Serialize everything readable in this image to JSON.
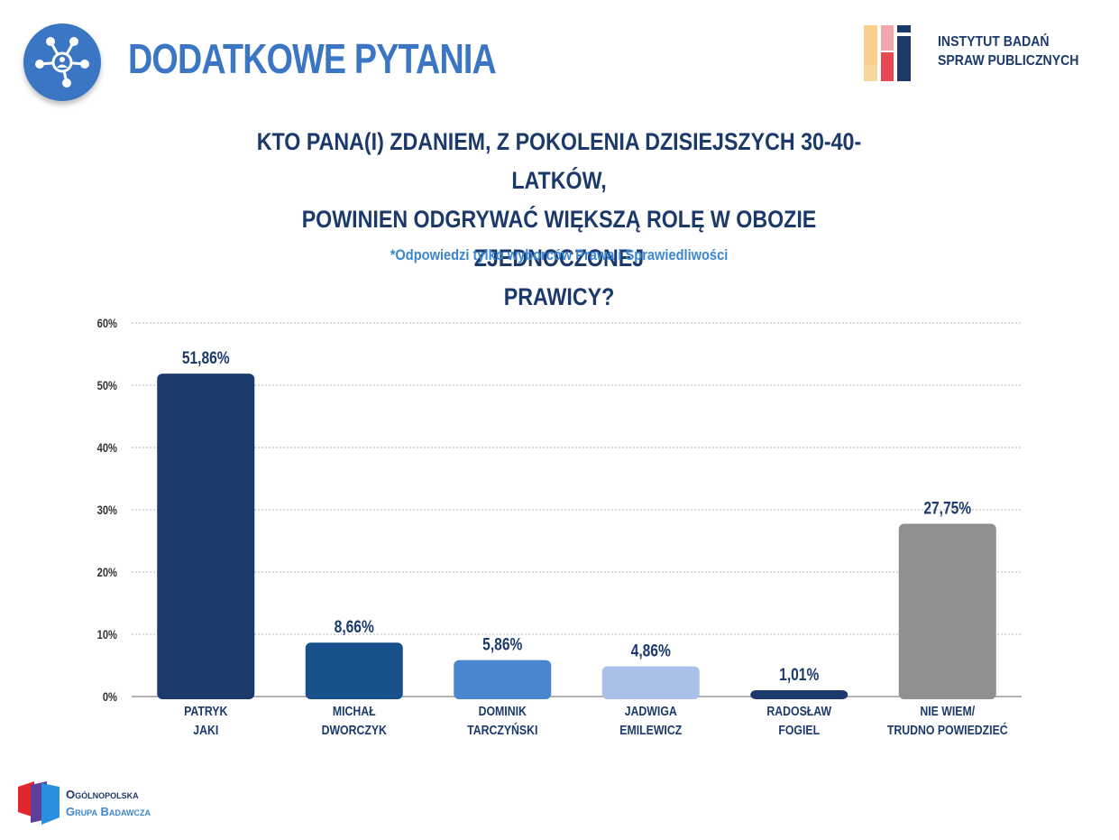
{
  "header": {
    "title": "DODATKOWE PYTANIA",
    "icon": "network-people-icon"
  },
  "ibsp": {
    "line1": "INSTYTUT BADAŃ",
    "line2": "SPRAW PUBLICZNYCH"
  },
  "question": {
    "line1": "KTO PANA(I) ZDANIEM, Z POKOLENIA DZISIEJSZYCH 30-40-LATKÓW,",
    "line2": "POWINIEN ODGRYWAĆ WIĘKSZĄ ROLĘ W OBOZIE ZJEDNOCZONEJ",
    "line3": "PRAWICY?"
  },
  "subtitle": "*Odpowiedzi tylko wyborców Prawa i Sprawiedliwości",
  "footer": {
    "line1": "Ogólnopolska",
    "line2": "Grupa Badawcza"
  },
  "chart_data": {
    "type": "bar",
    "title": "KTO PANA(I) ZDANIEM, Z POKOLENIA DZISIEJSZYCH 30-40-LATKÓW, POWINIEN ODGRYWAĆ WIĘKSZĄ ROLĘ W OBOZIE ZJEDNOCZONEJ PRAWICY?",
    "xlabel": "",
    "ylabel": "",
    "ylim": [
      0,
      60
    ],
    "yticks": [
      "0%",
      "10%",
      "20%",
      "30%",
      "40%",
      "50%",
      "60%"
    ],
    "grid": true,
    "categories": [
      [
        "PATRYK",
        "JAKI"
      ],
      [
        "MICHAŁ",
        "DWORCZYK"
      ],
      [
        "DOMINIK",
        "TARCZYŃSKI"
      ],
      [
        "JADWIGA",
        "EMILEWICZ"
      ],
      [
        "RADOSŁAW",
        "FOGIEL"
      ],
      [
        "NIE WIEM/",
        "TRUDNO POWIEDZIEĆ"
      ]
    ],
    "values": [
      51.86,
      8.66,
      5.86,
      4.86,
      1.01,
      27.75
    ],
    "value_labels": [
      "51,86%",
      "8,66%",
      "5,86%",
      "4,86%",
      "1,01%",
      "27,75%"
    ],
    "colors": [
      "#1b3a6b",
      "#17508a",
      "#4a86cf",
      "#a9c1e8",
      "#1b3a6b",
      "#8f8f8f"
    ]
  }
}
